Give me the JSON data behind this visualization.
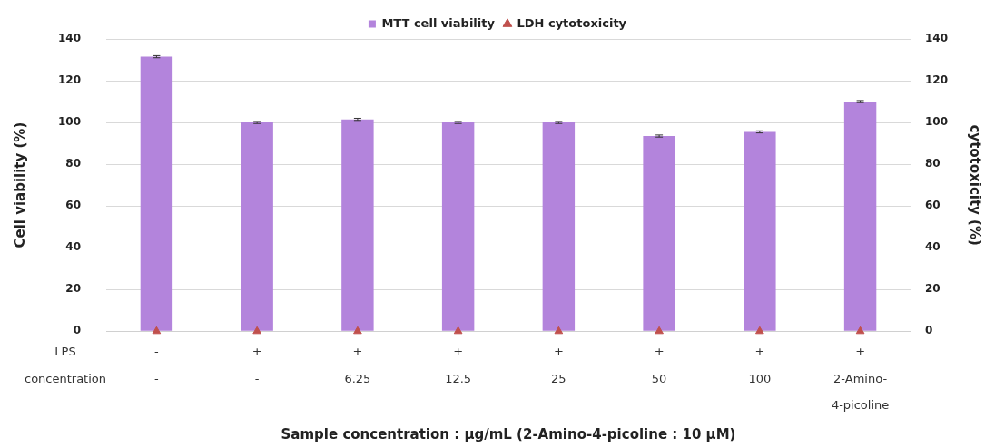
{
  "chart_data": {
    "type": "bar",
    "categories": [
      "-\n-",
      "+\n-",
      "+\n6.25",
      "+\n12.5",
      "+\n25",
      "+\n50",
      "+\n100",
      "+\n2-Amino-\n4-picoline"
    ],
    "series": [
      {
        "name": "MTT cell viability",
        "type": "bar",
        "color": "#b384dc",
        "values": [
          131.5,
          100,
          101.5,
          100,
          100,
          93.5,
          95.5,
          110
        ],
        "errors": [
          0.5,
          0.5,
          0.5,
          0.5,
          0.5,
          0.5,
          0.5,
          0.5
        ]
      },
      {
        "name": "LDH cytotoxicity",
        "type": "scatter",
        "axis": "y2",
        "marker": "triangle",
        "color": "#c0504d",
        "values": [
          0,
          0,
          0,
          0,
          0,
          0,
          0,
          0
        ]
      }
    ],
    "xlabel": "Sample concentration : µg/mL (2-Amino-4-picoline : 10 µM)",
    "ylabel": "Cell viability (%)",
    "y2label": "cytotoxicity (%)",
    "ylim": [
      0,
      140
    ],
    "yticks": [
      0,
      20,
      40,
      60,
      80,
      100,
      120,
      140
    ],
    "y2lim": [
      0,
      140
    ],
    "y2ticks": [
      0,
      20,
      40,
      60,
      80,
      100,
      120,
      140
    ],
    "annotations": [
      "LPS",
      "concentration"
    ],
    "grid": "y",
    "legend": "top"
  }
}
